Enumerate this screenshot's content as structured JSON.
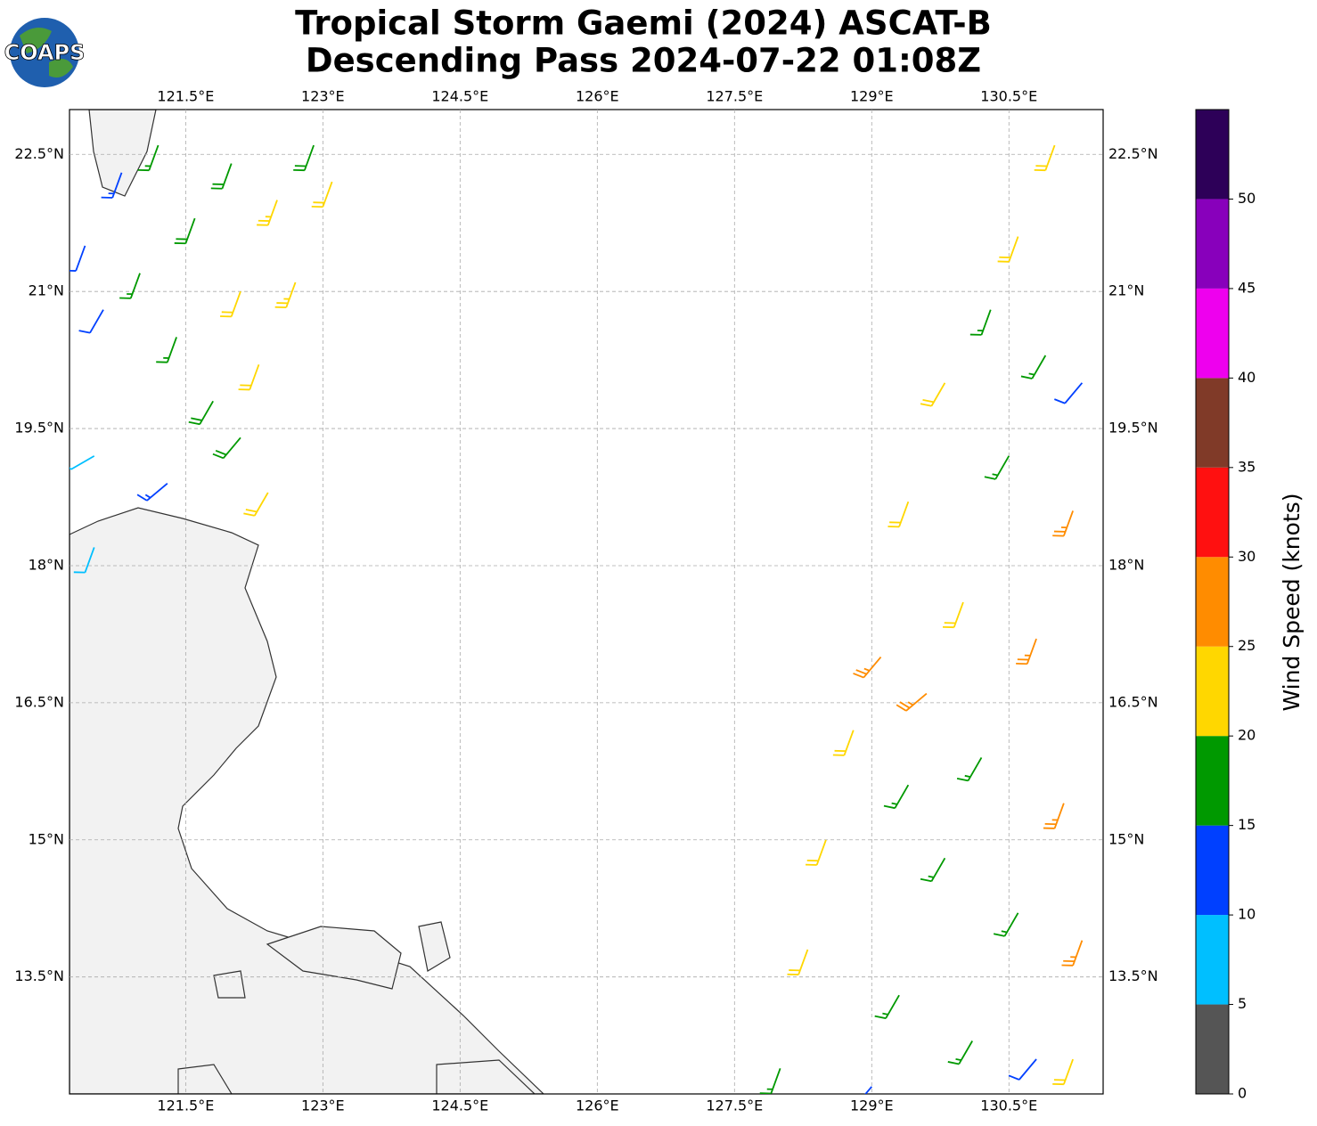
{
  "chart_data": {
    "type": "wind-barb-map",
    "title": "Tropical Storm Gaemi (2024) ASCAT-B",
    "subtitle": "Descending Pass 2024-07-22 01:08Z",
    "logo": "COAPS",
    "xlim": [
      120.23,
      131.53
    ],
    "ylim": [
      12.22,
      22.99
    ],
    "xticks": [
      {
        "value": 121.5,
        "label": "121.5°E"
      },
      {
        "value": 123,
        "label": "123°E"
      },
      {
        "value": 124.5,
        "label": "124.5°E"
      },
      {
        "value": 126,
        "label": "126°E"
      },
      {
        "value": 127.5,
        "label": "127.5°E"
      },
      {
        "value": 129,
        "label": "129°E"
      },
      {
        "value": 130.5,
        "label": "130.5°E"
      }
    ],
    "yticks": [
      {
        "value": 13.5,
        "label": "13.5°N"
      },
      {
        "value": 15,
        "label": "15°N"
      },
      {
        "value": 16.5,
        "label": "16.5°N"
      },
      {
        "value": 18,
        "label": "18°N"
      },
      {
        "value": 19.5,
        "label": "19.5°N"
      },
      {
        "value": 21,
        "label": "21°N"
      },
      {
        "value": 22.5,
        "label": "22.5°N"
      }
    ],
    "grid": true,
    "colorbar": {
      "label": "Wind Speed (knots)",
      "lim": [
        0,
        55
      ],
      "bins": [
        0,
        5,
        10,
        15,
        20,
        25,
        30,
        35,
        40,
        45,
        50,
        55
      ],
      "colors": [
        "#555555",
        "#00bfff",
        "#0040ff",
        "#009900",
        "#ffd700",
        "#ff8c00",
        "#ff1010",
        "#803a28",
        "#ee00ee",
        "#8800bb",
        "#2d0058"
      ],
      "ticks": [
        0,
        5,
        10,
        15,
        20,
        25,
        30,
        35,
        40,
        45,
        50
      ]
    },
    "barbs": {
      "lon": [
        120.4,
        120.6,
        120.5,
        120.8,
        121.0,
        121.2,
        121.4,
        121.6,
        121.8,
        122.0,
        122.1,
        122.3,
        122.5,
        122.7,
        122.9,
        123.1,
        121.3,
        122.1,
        122.4,
        120.5,
        131.0,
        130.6,
        130.3,
        130.9,
        131.3,
        129.8,
        130.5,
        131.2,
        129.4,
        130.0,
        130.8,
        129.1,
        129.6,
        128.8,
        129.4,
        130.2,
        131.1,
        128.5,
        129.8,
        130.6,
        131.3,
        128.3,
        129.3,
        130.1,
        130.8,
        128.0,
        129.0,
        131.2
      ],
      "lat": [
        21.5,
        20.8,
        19.2,
        22.3,
        21.2,
        22.6,
        20.5,
        21.8,
        19.8,
        22.4,
        21.0,
        20.2,
        22.0,
        21.1,
        22.6,
        22.2,
        18.9,
        19.4,
        18.8,
        18.2,
        22.6,
        21.6,
        20.8,
        20.3,
        20.0,
        20.0,
        19.2,
        18.6,
        18.7,
        17.6,
        17.2,
        17.0,
        16.6,
        16.2,
        15.6,
        15.9,
        15.4,
        15.0,
        14.8,
        14.2,
        13.9,
        13.8,
        13.3,
        12.8,
        12.6,
        12.5,
        12.3,
        12.6
      ],
      "speed": [
        12,
        12,
        8,
        14,
        17,
        17,
        17,
        18,
        19,
        19,
        22,
        22,
        23,
        23,
        18,
        22,
        14,
        18,
        22,
        8,
        22,
        22,
        17,
        17,
        12,
        22,
        17,
        27,
        22,
        22,
        27,
        27,
        27,
        22,
        17,
        17,
        27,
        22,
        17,
        17,
        27,
        22,
        17,
        17,
        12,
        17,
        12,
        22
      ],
      "direction": [
        200,
        210,
        240,
        200,
        200,
        200,
        200,
        200,
        210,
        200,
        200,
        200,
        200,
        200,
        200,
        200,
        230,
        220,
        210,
        200,
        200,
        200,
        200,
        210,
        220,
        210,
        210,
        200,
        200,
        200,
        200,
        220,
        230,
        200,
        210,
        210,
        200,
        200,
        210,
        210,
        200,
        200,
        210,
        210,
        220,
        200,
        220,
        200
      ]
    }
  }
}
